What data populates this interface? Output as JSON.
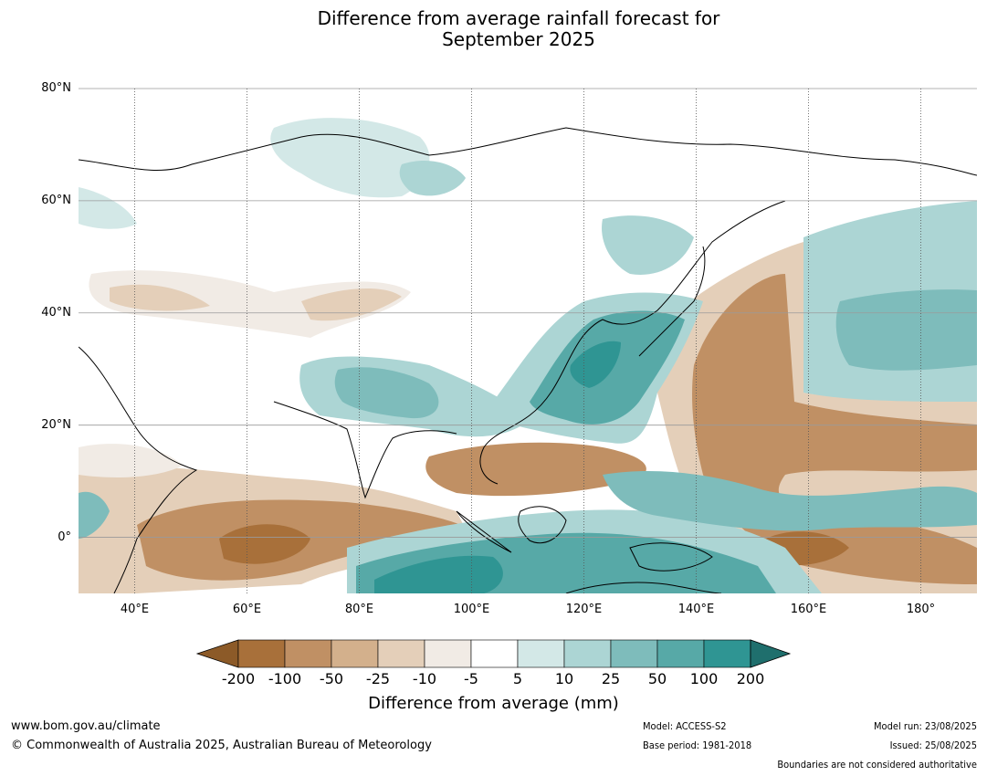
{
  "title": {
    "line1": "Difference from average rainfall forecast for",
    "line2": "September 2025"
  },
  "map": {
    "lat_labels": [
      "80°N",
      "60°N",
      "40°N",
      "20°N",
      "0°"
    ],
    "lon_labels": [
      "40°E",
      "60°E",
      "80°E",
      "100°E",
      "120°E",
      "140°E",
      "160°E",
      "180°"
    ],
    "extent": {
      "lon_min": 30,
      "lon_max": 190,
      "lat_min": -10,
      "lat_max": 80
    }
  },
  "colorbar": {
    "title": "Difference from average (mm)",
    "ticks": [
      "-200",
      "-100",
      "-50",
      "-25",
      "-10",
      "-5",
      "5",
      "10",
      "25",
      "50",
      "100",
      "200"
    ],
    "colors": [
      "#8c5a28",
      "#a8703a",
      "#c09064",
      "#d3b08c",
      "#e4cfb9",
      "#f1ebe5",
      "#ffffff",
      "#d3e8e7",
      "#acd5d4",
      "#7ebcbb",
      "#57a9a7",
      "#2f9593",
      "#1f6f6d"
    ]
  },
  "footer": {
    "website": "www.bom.gov.au/climate",
    "copyright": "© Commonwealth of Australia 2025, Australian Bureau of Meteorology",
    "model": "Model: ACCESS-S2",
    "base_period": "Base period: 1981-2018",
    "model_run": "Model run: 23/08/2025",
    "issued": "Issued: 25/08/2025",
    "boundaries": "Boundaries are not considered authoritative"
  }
}
